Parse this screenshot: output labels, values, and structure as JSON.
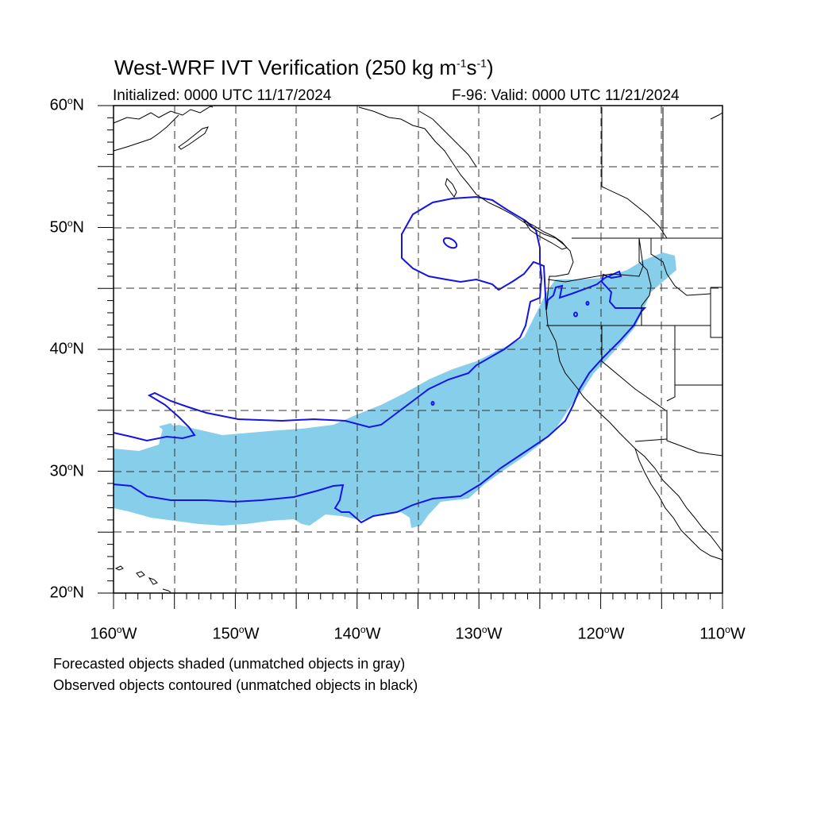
{
  "title": {
    "main": "West-WRF IVT Verification (250 kg m",
    "exp1": "-1",
    "mid": "s",
    "exp2": "-1",
    "close": ")"
  },
  "subtitle_left": "Initialized: 0000 UTC 11/17/2024",
  "subtitle_right": "F-96: Valid: 0000 UTC 11/21/2024",
  "lat_labels": [
    {
      "value": "60",
      "suffix": "N"
    },
    {
      "value": "50",
      "suffix": "N"
    },
    {
      "value": "40",
      "suffix": "N"
    },
    {
      "value": "30",
      "suffix": "N"
    },
    {
      "value": "20",
      "suffix": "N"
    }
  ],
  "lon_labels": [
    {
      "value": "160",
      "suffix": "W"
    },
    {
      "value": "150",
      "suffix": "W"
    },
    {
      "value": "140",
      "suffix": "W"
    },
    {
      "value": "130",
      "suffix": "W"
    },
    {
      "value": "120",
      "suffix": "W"
    },
    {
      "value": "110",
      "suffix": "W"
    }
  ],
  "degree_symbol": "o",
  "footnote_1": "Forecasted objects shaded (unmatched objects in gray)",
  "footnote_2": "Observed objects contoured (unmatched objects in black)",
  "colors": {
    "forecast_fill": "#87ceeb",
    "observed_contour": "#1414e6",
    "coastline": "#000000",
    "grid": "#333333"
  },
  "map_extent": {
    "lon": [
      -160,
      -110
    ],
    "lat": [
      20,
      60
    ]
  }
}
